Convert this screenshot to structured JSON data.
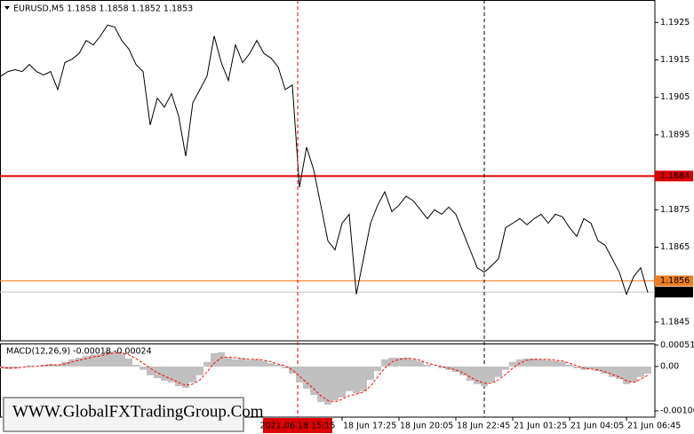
{
  "chart_data": [
    {
      "type": "line",
      "title": "EURUSD,M5  1.1858 1.1858 1.1852 1.1853",
      "color": "#000000",
      "values": [
        1.19107,
        1.19119,
        1.19124,
        1.19119,
        1.19138,
        1.19119,
        1.1911,
        1.19119,
        1.19071,
        1.19143,
        1.19152,
        1.19167,
        1.19202,
        1.1919,
        1.19214,
        1.19243,
        1.19238,
        1.19202,
        1.19179,
        1.19138,
        1.19119,
        1.18976,
        1.19048,
        1.19024,
        1.1906,
        1.19,
        1.18893,
        1.19036,
        1.19071,
        1.19107,
        1.19214,
        1.19143,
        1.19095,
        1.1919,
        1.19143,
        1.19167,
        1.19202,
        1.19167,
        1.19155,
        1.19131,
        1.19071,
        1.19083,
        1.1881,
        1.18917,
        1.18857,
        1.18762,
        1.18667,
        1.18643,
        1.18714,
        1.18738,
        1.18524,
        1.18619,
        1.18714,
        1.18762,
        1.18798,
        1.18745,
        1.18762,
        1.18786,
        1.18774,
        1.1875,
        1.18726,
        1.1875,
        1.18738,
        1.18757,
        1.18738,
        1.1869,
        1.18643,
        1.18595,
        1.18583,
        1.186,
        1.18619,
        1.18702,
        1.18714,
        1.18726,
        1.1871,
        1.18726,
        1.18738,
        1.18714,
        1.18738,
        1.18731,
        1.18702,
        1.18679,
        1.18726,
        1.18714,
        1.18667,
        1.18655,
        1.18619,
        1.18583,
        1.18524,
        1.18571,
        1.18595,
        1.18529
      ],
      "xlim": [
        -0.125,
        92
      ],
      "ylim": [
        1.184,
        1.1931
      ],
      "yticks": [
        1.1925,
        1.1915,
        1.1905,
        1.1895,
        1.1875,
        1.1865,
        1.1845
      ],
      "hlines": [
        {
          "value": 1.1884,
          "color": "#dd0000"
        },
        {
          "value": 1.1856,
          "color": "#f07d1e"
        },
        {
          "value": 1.1853,
          "color": "#c0c0c0",
          "label_color": "#000000"
        }
      ],
      "vlines": [
        {
          "value": 41.75,
          "color": "#dd0000",
          "label": "2021.06.18 15:15"
        },
        {
          "value": 68,
          "color": "#000000"
        }
      ]
    },
    {
      "type": "combo",
      "title": "MACD(12,26,9) -0.00018 -0.00024",
      "xlim": [
        -0.125,
        92
      ],
      "ylim": [
        -0.00121,
        0.00055
      ],
      "yticks": [
        0.00051,
        {
          "value": 0,
          "label": "0.00"
        },
        -0.00106
      ],
      "xticks": [
        {
          "value": 48,
          "label": "18 Jun 17:25"
        },
        {
          "value": 56,
          "label": "18 Jun 20:05"
        },
        {
          "value": 64,
          "label": "18 Jun 22:45"
        },
        {
          "value": 72,
          "label": "21 Jun 01:25"
        },
        {
          "value": 80,
          "label": "21 Jun 04:05"
        },
        {
          "value": 88,
          "label": "21 Jun 06:45"
        }
      ],
      "series": [
        {
          "type": "bar",
          "color": "#c0c0c0",
          "values": [
            -4e-05,
            -6e-05,
            -4e-05,
            0,
            2e-05,
            0,
            4e-05,
            6e-05,
            4e-05,
            0.00011,
            0.00017,
            0.00021,
            0.00025,
            0.00028,
            0.0003,
            0.00036,
            0.00036,
            0.0003,
            0.00019,
            4e-05,
            -8e-05,
            -0.00021,
            -0.00028,
            -0.00034,
            -0.00038,
            -0.00047,
            -0.00051,
            -0.00038,
            -0.00021,
            0.00011,
            0.00032,
            0.00034,
            0.00021,
            0.00017,
            0.00019,
            0.00015,
            0.00017,
            0.00013,
            8e-05,
            4e-05,
            -4e-05,
            -0.00017,
            -0.00038,
            -0.00053,
            -0.00068,
            -0.00085,
            -0.00091,
            -0.00081,
            -0.00074,
            -0.00059,
            -0.00064,
            -0.00059,
            -0.00032,
            -0.00011,
            0.00017,
            0.00021,
            0.00021,
            0.00021,
            0.00017,
            0.00013,
            4e-05,
            0,
            -4e-05,
            -8e-05,
            -0.00013,
            -0.00021,
            -0.00034,
            -0.00042,
            -0.00047,
            -0.00038,
            -0.00025,
            -8e-05,
            0.00011,
            0.00017,
            0.00019,
            0.00019,
            0.00017,
            0.00015,
            0.00013,
            0.00011,
            4e-05,
            -4e-05,
            -8e-05,
            -6e-05,
            -0.00011,
            -0.00017,
            -0.00025,
            -0.0003,
            -0.00042,
            -0.00038,
            -0.00025,
            -0.00017
          ]
        },
        {
          "type": "line",
          "color": "#ff0000",
          "values": [
            -2e-05,
            -4e-05,
            -4e-05,
            -2e-05,
            0,
            0,
            2e-05,
            4e-05,
            4e-05,
            6e-05,
            0.00011,
            0.00015,
            0.00019,
            0.00023,
            0.00025,
            0.0003,
            0.00032,
            0.00032,
            0.00028,
            0.00019,
            8e-05,
            -4e-05,
            -0.00015,
            -0.00023,
            -0.0003,
            -0.00038,
            -0.00045,
            -0.00042,
            -0.00032,
            -0.00013,
            8e-05,
            0.00021,
            0.00023,
            0.00021,
            0.00019,
            0.00017,
            0.00017,
            0.00015,
            0.00011,
            6e-05,
            2e-05,
            -8e-05,
            -0.00023,
            -0.00038,
            -0.00053,
            -0.0007,
            -0.00081,
            -0.00085,
            -0.00078,
            -0.0007,
            -0.00066,
            -0.00061,
            -0.00047,
            -0.00025,
            -4e-05,
            0.00011,
            0.00017,
            0.00019,
            0.00019,
            0.00015,
            8e-05,
            4e-05,
            0,
            -4e-05,
            -8e-05,
            -0.00015,
            -0.00025,
            -0.00034,
            -0.0004,
            -0.0004,
            -0.00032,
            -0.00019,
            -4e-05,
            8e-05,
            0.00015,
            0.00017,
            0.00017,
            0.00017,
            0.00015,
            0.00013,
            8e-05,
            2e-05,
            -4e-05,
            -6e-05,
            -8e-05,
            -0.00013,
            -0.00019,
            -0.00025,
            -0.00034,
            -0.00038,
            -0.0003,
            -0.00021
          ]
        }
      ]
    }
  ],
  "watermark": "WWW.GlobalFXTradingGroup.Com"
}
